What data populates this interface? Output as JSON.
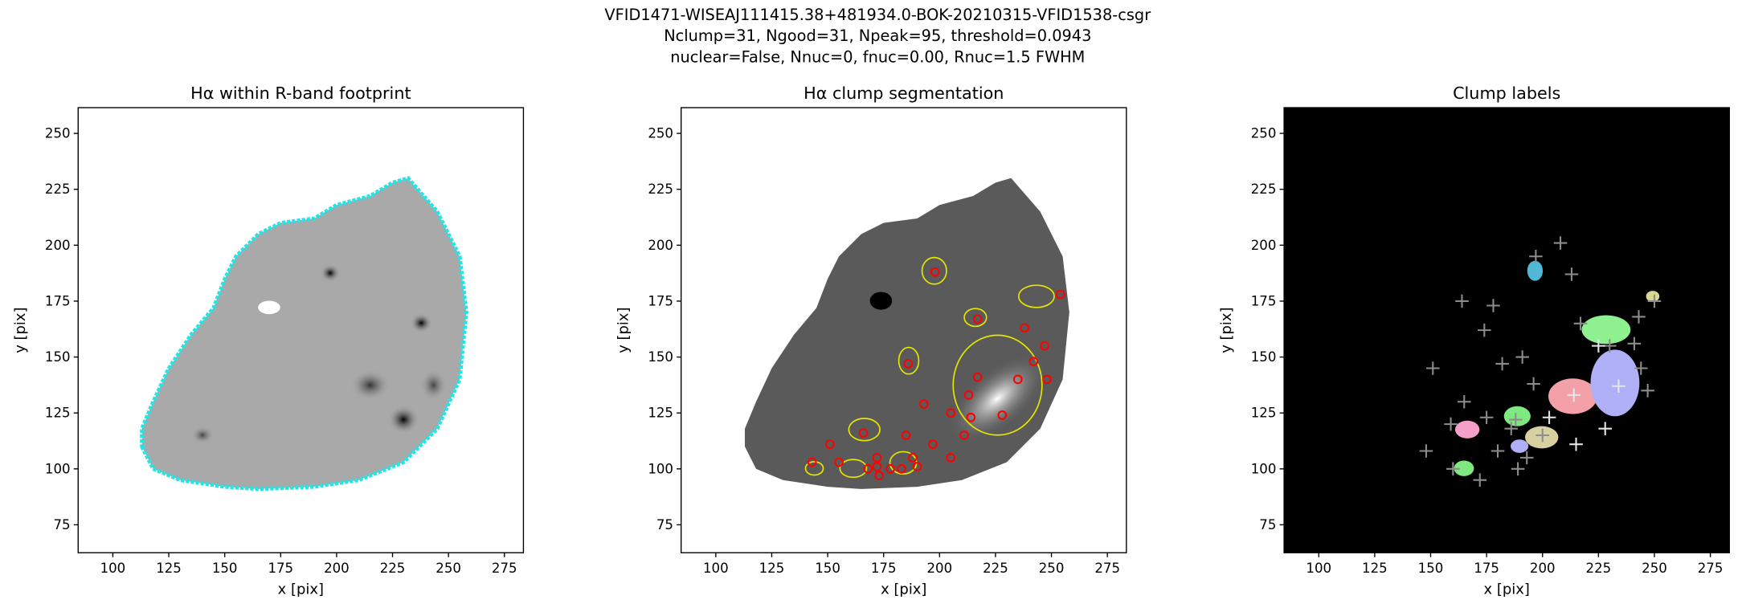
{
  "figure": {
    "title_lines": [
      "VFID1471-WISEAJ111415.38+481934.0-BOK-20210315-VFID1538-csgr",
      "Nclump=31, Ngood=31, Npeak=95, threshold=0.0943",
      "nuclear=False, Nnuc=0, fnuc=0.00, Rnuc=1.5 FWHM"
    ]
  },
  "chart_data": [
    {
      "type": "image",
      "title": "Hα within R-band footprint",
      "xlabel": "x [pix]",
      "ylabel": "y [pix]",
      "xlim": [
        84.5,
        283.5
      ],
      "ylim": [
        62.5,
        261.5
      ],
      "xticks": [
        100,
        125,
        150,
        175,
        200,
        225,
        250,
        275
      ],
      "yticks": [
        75,
        100,
        125,
        150,
        175,
        200,
        225,
        250
      ]
    },
    {
      "type": "image",
      "title": "Hα clump segmentation",
      "xlabel": "x [pix]",
      "ylabel": "y [pix]",
      "xlim": [
        84.5,
        283.5
      ],
      "ylim": [
        62.5,
        261.5
      ],
      "xticks": [
        100,
        125,
        150,
        175,
        200,
        225,
        250,
        275
      ],
      "yticks": [
        75,
        100,
        125,
        150,
        175,
        200,
        225,
        250
      ],
      "series": [
        {
          "marker": "circle",
          "color": "#ff0000",
          "x": [
            198,
            217,
            238,
            254,
            247,
            186,
            242,
            217,
            235,
            248,
            213,
            193,
            205,
            214,
            228,
            166,
            185,
            211,
            197,
            151,
            143,
            155,
            172,
            172,
            168,
            173,
            183,
            190,
            205,
            178,
            188
          ],
          "y": [
            188,
            167,
            163,
            178,
            155,
            147,
            148,
            141,
            140,
            140,
            133,
            129,
            125,
            123,
            124,
            116,
            115,
            115,
            111,
            111,
            103,
            103,
            105,
            101,
            100,
            97,
            100,
            101,
            105,
            100,
            105
          ]
        }
      ]
    },
    {
      "type": "image",
      "title": "Clump labels",
      "xlabel": "x [pix]",
      "ylabel": "y [pix]",
      "xlim": [
        84.5,
        283.5
      ],
      "ylim": [
        62.5,
        261.5
      ],
      "xticks": [
        100,
        125,
        150,
        175,
        200,
        225,
        250,
        275
      ],
      "yticks": [
        75,
        100,
        125,
        150,
        175,
        200,
        225,
        250
      ],
      "series": [
        {
          "marker": "plus",
          "color": "#8c8c8c",
          "x": [
            208,
            197,
            213,
            164,
            178,
            250,
            243,
            151,
            174,
            191,
            182,
            241,
            196,
            165,
            159,
            175,
            186,
            200,
            180,
            172,
            160,
            148,
            193,
            189,
            217,
            230,
            244,
            247,
            188
          ],
          "y": [
            201,
            195,
            187,
            175,
            173,
            175,
            168,
            145,
            162,
            150,
            147,
            156,
            138,
            130,
            120,
            123,
            118,
            115,
            108,
            95,
            100,
            108,
            105,
            100,
            165,
            155,
            145,
            135,
            122
          ]
        },
        {
          "marker": "plus",
          "color": "#e6e6e6",
          "x": [
            214,
            234,
            228,
            203,
            225,
            215
          ],
          "y": [
            133,
            137,
            118,
            123,
            155,
            111
          ]
        }
      ]
    }
  ]
}
